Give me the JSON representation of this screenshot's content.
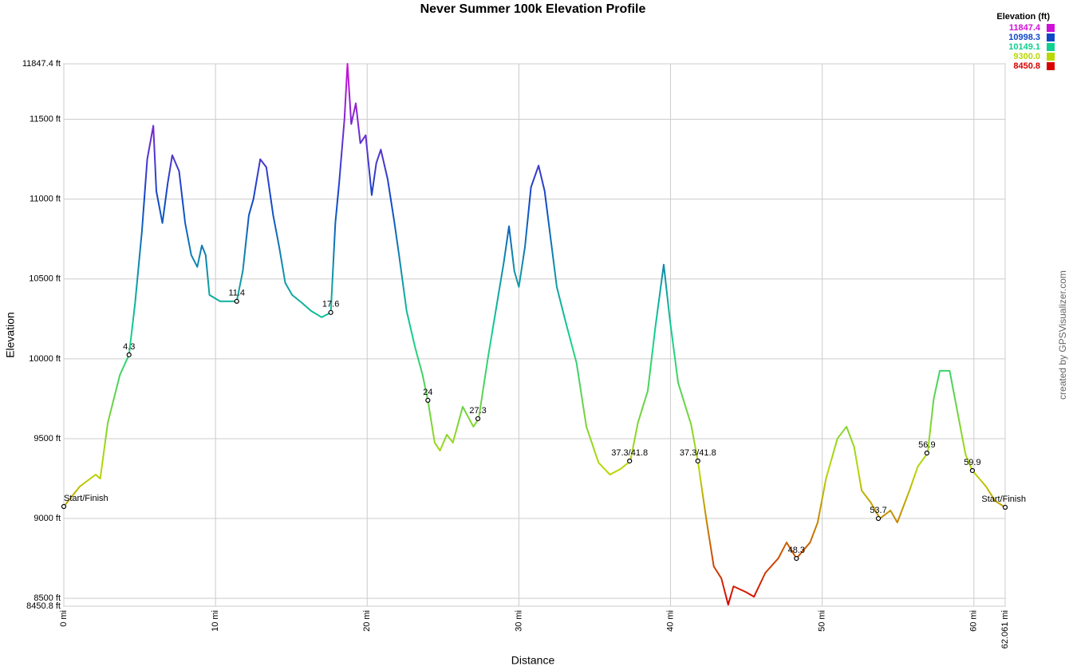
{
  "chart_data": {
    "type": "line",
    "title": "Never Summer 100k Elevation Profile",
    "xlabel": "Distance",
    "ylabel": "Elevation",
    "credit": "created by GPSVisualizer.com",
    "x": [
      0,
      1.05,
      2.1,
      2.4,
      2.9,
      3.7,
      4.3,
      4.7,
      5.15,
      5.5,
      5.9,
      6.1,
      6.5,
      6.85,
      7.15,
      7.6,
      8.0,
      8.4,
      8.8,
      9.1,
      9.35,
      9.6,
      10.3,
      11.4,
      11.8,
      12.2,
      12.5,
      12.95,
      13.35,
      13.8,
      14.2,
      14.6,
      15.05,
      15.7,
      16.3,
      17.0,
      17.6,
      17.9,
      18.15,
      18.5,
      18.7,
      18.95,
      19.25,
      19.55,
      19.9,
      20.3,
      20.6,
      20.9,
      21.35,
      21.8,
      22.1,
      22.6,
      23.15,
      23.65,
      24.0,
      24.45,
      24.8,
      25.25,
      25.65,
      26.3,
      27.0,
      27.35,
      27.95,
      28.65,
      29.0,
      29.35,
      29.7,
      30.0,
      30.4,
      30.8,
      31.3,
      31.7,
      32.0,
      32.5,
      33.1,
      33.8,
      34.45,
      35.25,
      36.0,
      36.7,
      37.35,
      37.85,
      38.5,
      39.0,
      39.55,
      39.95,
      40.5,
      41.35,
      41.8,
      42.35,
      42.85,
      43.35,
      43.8,
      44.15,
      44.95,
      45.5,
      46.25,
      47.1,
      47.65,
      48.3,
      49.2,
      49.7,
      50.25,
      51.0,
      51.6,
      52.1,
      52.6,
      53.2,
      53.8,
      54.5,
      54.95,
      55.75,
      56.3,
      56.95,
      57.35,
      57.75,
      58.4,
      58.95,
      59.45,
      59.9,
      60.8,
      61.4,
      62.061
    ],
    "series": [
      {
        "values": [
          9075,
          9200,
          9275,
          9250,
          9600,
          9900,
          10025,
          10350,
          10800,
          11250,
          11460,
          11050,
          10850,
          11100,
          11275,
          11175,
          10850,
          10650,
          10575,
          10710,
          10650,
          10400,
          10360,
          10360,
          10550,
          10900,
          11000,
          11250,
          11200,
          10900,
          10700,
          10475,
          10400,
          10350,
          10300,
          10260,
          10290,
          10850,
          11100,
          11500,
          11847.4,
          11470,
          11600,
          11350,
          11400,
          11025,
          11225,
          11310,
          11125,
          10850,
          10650,
          10300,
          10075,
          9900,
          9740,
          9475,
          9425,
          9525,
          9475,
          9700,
          9575,
          9625,
          10000,
          10400,
          10600,
          10830,
          10550,
          10450,
          10700,
          11075,
          11210,
          11050,
          10825,
          10450,
          10225,
          9975,
          9575,
          9350,
          9275,
          9310,
          9360,
          9600,
          9800,
          10200,
          10590,
          10250,
          9850,
          9590,
          9360,
          9000,
          8700,
          8625,
          8460,
          8575,
          8540,
          8510,
          8660,
          8750,
          8850,
          8750,
          8850,
          8975,
          9250,
          9500,
          9575,
          9450,
          9175,
          9100,
          9000,
          9050,
          8975,
          9175,
          9325,
          9410,
          9750,
          9925,
          9925,
          9650,
          9400,
          9300,
          9200,
          9110,
          9070
        ]
      }
    ],
    "xlim": [
      0,
      62.061
    ],
    "ylim": [
      8450.8,
      11847.4
    ],
    "xticks": [
      {
        "value": 0,
        "label": "0 mi"
      },
      {
        "value": 10,
        "label": "10 mi"
      },
      {
        "value": 20,
        "label": "20 mi"
      },
      {
        "value": 30,
        "label": "30 mi"
      },
      {
        "value": 40,
        "label": "40 mi"
      },
      {
        "value": 50,
        "label": "50 mi"
      },
      {
        "value": 60,
        "label": "60 mi"
      },
      {
        "value": 62.061,
        "label": "62.061 mi"
      }
    ],
    "yticks": [
      {
        "value": 8450.8,
        "label": "8450.8 ft"
      },
      {
        "value": 8500,
        "label": "8500 ft"
      },
      {
        "value": 9000,
        "label": "9000 ft"
      },
      {
        "value": 9500,
        "label": "9500 ft"
      },
      {
        "value": 10000,
        "label": "10000 ft"
      },
      {
        "value": 10500,
        "label": "10500 ft"
      },
      {
        "value": 11000,
        "label": "11000 ft"
      },
      {
        "value": 11500,
        "label": "11500 ft"
      },
      {
        "value": 11847.4,
        "label": "11847.4 ft"
      }
    ],
    "grid": true,
    "color_scale": {
      "title": "Elevation (ft)",
      "stops": [
        {
          "value": 11847.4,
          "color": "#d010d8"
        },
        {
          "value": 10998.3,
          "color": "#1048c8"
        },
        {
          "value": 10149.1,
          "color": "#10d090"
        },
        {
          "value": 9300,
          "label": "9300.0",
          "color": "#b8d800"
        },
        {
          "value": 8450.8,
          "color": "#d80000"
        }
      ]
    },
    "waypoints": [
      {
        "label": "Start/Finish",
        "x": 0,
        "y": 9075
      },
      {
        "label": "4.3",
        "x": 4.3,
        "y": 10025
      },
      {
        "label": "11.4",
        "x": 11.4,
        "y": 10360
      },
      {
        "label": "17.6",
        "x": 17.6,
        "y": 10290
      },
      {
        "label": "24",
        "x": 24.0,
        "y": 9740
      },
      {
        "label": "27.3",
        "x": 27.3,
        "y": 9625
      },
      {
        "label": "37.3/41.8",
        "x": 37.3,
        "y": 9360
      },
      {
        "label": "37.3/41.8",
        "x": 41.8,
        "y": 9360
      },
      {
        "label": "48.3",
        "x": 48.3,
        "y": 8750
      },
      {
        "label": "53.7",
        "x": 53.7,
        "y": 9000
      },
      {
        "label": "56.9",
        "x": 56.9,
        "y": 9410
      },
      {
        "label": "59.9",
        "x": 59.9,
        "y": 9300
      },
      {
        "label": "Start/Finish",
        "x": 62.061,
        "y": 9070
      }
    ]
  }
}
